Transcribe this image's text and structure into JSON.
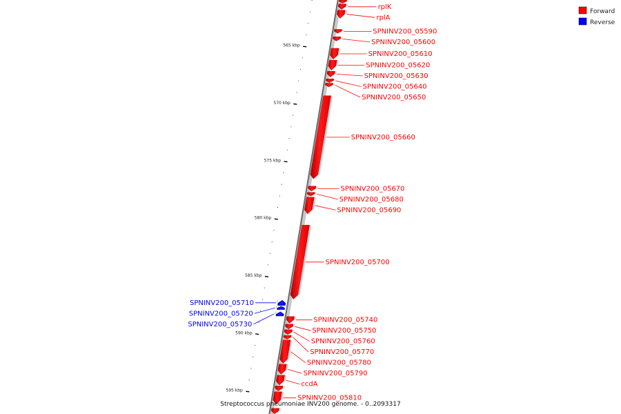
{
  "genome": {
    "title": "Streptococcus pneumoniae INV200 genome. - 0..2093317",
    "start_bp": 561000,
    "end_bp": 597000
  },
  "legend": [
    {
      "label": "Forward",
      "color": "#ff0000"
    },
    {
      "label": "Reverse",
      "color": "#0000ff"
    }
  ],
  "ticks": [
    {
      "bp": 565000,
      "label": "565 kbp"
    },
    {
      "bp": 570000,
      "label": "570 kbp"
    },
    {
      "bp": 575000,
      "label": "575 kbp"
    },
    {
      "bp": 580000,
      "label": "580 kbp"
    },
    {
      "bp": 585000,
      "label": "585 kbp"
    },
    {
      "bp": 590000,
      "label": "590 kbp"
    },
    {
      "bp": 595000,
      "label": "595 kbp"
    }
  ],
  "genes": [
    {
      "name": "",
      "strand": "+",
      "start": 561000,
      "end": 561280
    },
    {
      "name": "rplK",
      "strand": "+",
      "start": 561350,
      "end": 561820
    },
    {
      "name": "rplA",
      "strand": "+",
      "start": 561880,
      "end": 562600
    },
    {
      "name": "SPNINV200_05590",
      "strand": "+",
      "start": 563550,
      "end": 563900
    },
    {
      "name": "SPNINV200_05600",
      "strand": "+",
      "start": 564200,
      "end": 564570
    },
    {
      "name": "SPNINV200_05610",
      "strand": "+",
      "start": 565200,
      "end": 566160
    },
    {
      "name": "SPNINV200_05620",
      "strand": "+",
      "start": 566230,
      "end": 567110
    },
    {
      "name": "SPNINV200_05630",
      "strand": "+",
      "start": 567190,
      "end": 567700
    },
    {
      "name": "SPNINV200_05640",
      "strand": "+",
      "start": 567860,
      "end": 568190
    },
    {
      "name": "SPNINV200_05650",
      "strand": "+",
      "start": 568230,
      "end": 568560
    },
    {
      "name": "SPNINV200_05660",
      "strand": "+",
      "start": 569320,
      "end": 576550
    },
    {
      "name": "SPNINV200_05670",
      "strand": "+",
      "start": 577190,
      "end": 577620
    },
    {
      "name": "SPNINV200_05680",
      "strand": "+",
      "start": 577720,
      "end": 578050
    },
    {
      "name": "SPNINV200_05690",
      "strand": "+",
      "start": 578140,
      "end": 579600
    },
    {
      "name": "SPNINV200_05700",
      "strand": "+",
      "start": 580570,
      "end": 587010
    },
    {
      "name": "SPNINV200_05710",
      "strand": "-",
      "start": 587100,
      "end": 587560
    },
    {
      "name": "SPNINV200_05720",
      "strand": "-",
      "start": 587620,
      "end": 587920
    },
    {
      "name": "SPNINV200_05730",
      "strand": "-",
      "start": 588100,
      "end": 588480
    },
    {
      "name": "SPNINV200_05740",
      "strand": "+",
      "start": 588520,
      "end": 589120
    },
    {
      "name": "SPNINV200_05750",
      "strand": "+",
      "start": 589180,
      "end": 589620
    },
    {
      "name": "SPNINV200_05760",
      "strand": "+",
      "start": 589670,
      "end": 590100
    },
    {
      "name": "SPNINV200_05770",
      "strand": "+",
      "start": 590160,
      "end": 590500
    },
    {
      "name": "SPNINV200_05780",
      "strand": "+",
      "start": 590560,
      "end": 592600
    },
    {
      "name": "SPNINV200_05790",
      "strand": "+",
      "start": 592660,
      "end": 593560
    },
    {
      "name": "ccdA",
      "strand": "+",
      "start": 593630,
      "end": 594500
    },
    {
      "name": "",
      "strand": "+",
      "start": 594560,
      "end": 595000
    },
    {
      "name": "SPNINV200_05810",
      "strand": "+",
      "start": 595060,
      "end": 596140
    },
    {
      "name": "",
      "strand": "+",
      "start": 596500,
      "end": 597000
    }
  ]
}
